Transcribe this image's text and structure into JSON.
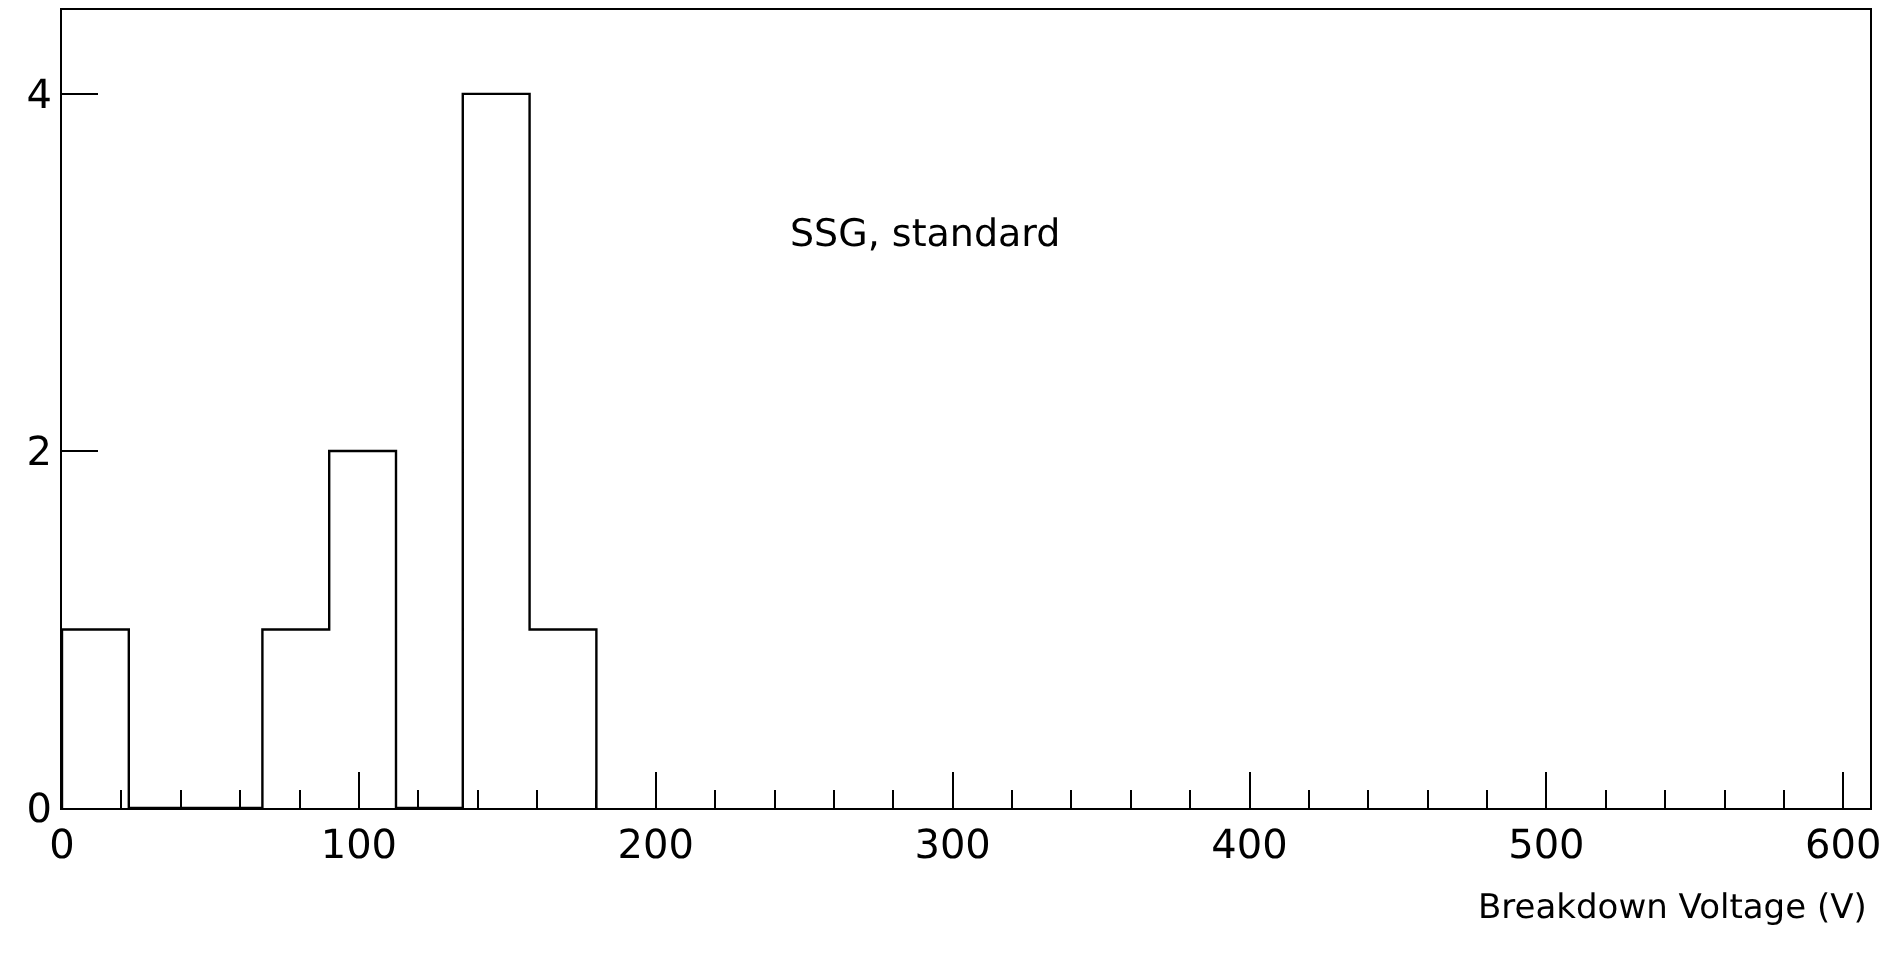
{
  "chart_data": {
    "type": "histogram",
    "xlabel": "Breakdown Voltage (V)",
    "bins": [
      0,
      22.5,
      45,
      67.5,
      90,
      112.5,
      135,
      157.5,
      180
    ],
    "values": [
      1,
      0,
      0,
      1,
      2,
      0,
      4,
      1
    ],
    "color": "#000000",
    "xlim": [
      0,
      609
    ],
    "ylim": [
      0,
      4.47
    ],
    "xticks": [
      0,
      {
        "value": 20,
        "label": null
      },
      {
        "value": 40,
        "label": null
      },
      {
        "value": 60,
        "label": null
      },
      {
        "value": 80,
        "label": null
      },
      100,
      {
        "value": 120,
        "label": null
      },
      {
        "value": 140,
        "label": null
      },
      {
        "value": 160,
        "label": null
      },
      {
        "value": 180,
        "label": null
      },
      200,
      {
        "value": 220,
        "label": null
      },
      {
        "value": 240,
        "label": null
      },
      {
        "value": 260,
        "label": null
      },
      {
        "value": 280,
        "label": null
      },
      300,
      {
        "value": 320,
        "label": null
      },
      {
        "value": 340,
        "label": null
      },
      {
        "value": 360,
        "label": null
      },
      {
        "value": 380,
        "label": null
      },
      400,
      {
        "value": 420,
        "label": null
      },
      {
        "value": 440,
        "label": null
      },
      {
        "value": 460,
        "label": null
      },
      {
        "value": 480,
        "label": null
      },
      500,
      {
        "value": 520,
        "label": null
      },
      {
        "value": 540,
        "label": null
      },
      {
        "value": 560,
        "label": null
      },
      {
        "value": 580,
        "label": null
      },
      600
    ],
    "yticks": [
      0,
      2,
      4
    ],
    "annotations": [
      "SSG, standard"
    ]
  }
}
